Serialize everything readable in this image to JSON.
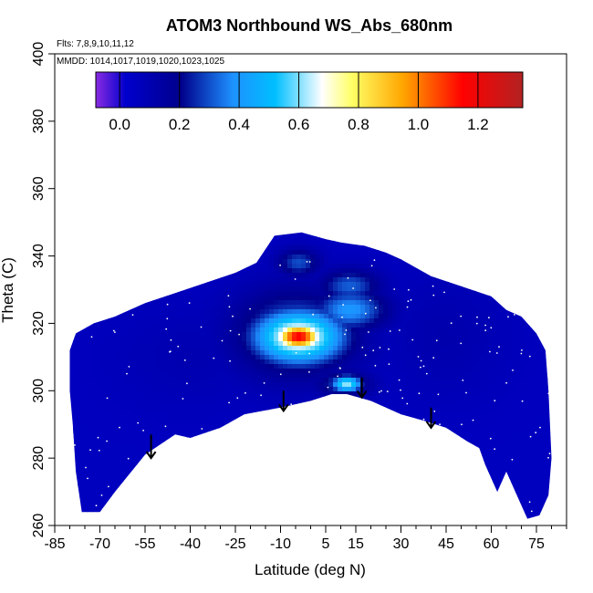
{
  "chart_data": {
    "type": "heatmap",
    "title": "ATOM3 Northbound WS_Abs_680nm",
    "xlabel": "Latitude (deg N)",
    "ylabel": "Theta (C)",
    "flights_label": "Flts: 7,8,9,10,11,12",
    "mmdd_label": "MMDD: 1014,1017,1019,1020,1023,1025",
    "xlim": [
      -85,
      85
    ],
    "ylim": [
      260,
      400
    ],
    "x_ticks": [
      -85,
      -70,
      -55,
      -40,
      -25,
      -10,
      5,
      15,
      30,
      45,
      60,
      75
    ],
    "x_tick_labels": [
      "-85",
      "-70",
      "-55",
      "-40",
      "-25",
      "-10",
      "5",
      "15",
      "30",
      "45",
      "60",
      "75"
    ],
    "y_ticks": [
      260,
      280,
      300,
      320,
      340,
      360,
      380,
      400
    ],
    "y_tick_labels": [
      "260",
      "280",
      "300",
      "320",
      "340",
      "360",
      "380",
      "400"
    ],
    "colorbar": {
      "range": [
        -0.08,
        1.35
      ],
      "ticks": [
        0.0,
        0.2,
        0.4,
        0.6,
        0.8,
        1.0,
        1.2
      ],
      "tick_labels": [
        "0.0",
        "0.2",
        "0.4",
        "0.6",
        "0.8",
        "1.0",
        "1.2"
      ],
      "colors": [
        "#8a2be2",
        "#0000cd",
        "#00008b",
        "#1e90ff",
        "#00bfff",
        "#ffffff",
        "#ffff66",
        "#ffa500",
        "#ff0000",
        "#b22222"
      ],
      "stops": [
        0.0,
        0.07,
        0.2,
        0.32,
        0.42,
        0.53,
        0.6,
        0.72,
        0.86,
        1.0
      ]
    },
    "coverage_upper": [
      [
        -80,
        312
      ],
      [
        -78,
        317
      ],
      [
        -72,
        320
      ],
      [
        -65,
        322
      ],
      [
        -55,
        326
      ],
      [
        -45,
        329
      ],
      [
        -35,
        332
      ],
      [
        -25,
        335
      ],
      [
        -18,
        338
      ],
      [
        -12,
        346
      ],
      [
        -3,
        347
      ],
      [
        5,
        345
      ],
      [
        10,
        344
      ],
      [
        18,
        343
      ],
      [
        25,
        341
      ],
      [
        30,
        339
      ],
      [
        40,
        334
      ],
      [
        50,
        331
      ],
      [
        60,
        328
      ],
      [
        65,
        324
      ],
      [
        70,
        322
      ],
      [
        75,
        317
      ],
      [
        78,
        312
      ],
      [
        79,
        300
      ],
      [
        80,
        280
      ],
      [
        79,
        269
      ]
    ],
    "coverage_lower": [
      [
        -80,
        312
      ],
      [
        -80,
        300
      ],
      [
        -79,
        290
      ],
      [
        -78,
        276
      ],
      [
        -76,
        264
      ],
      [
        -70,
        264
      ],
      [
        -65,
        270
      ],
      [
        -55,
        281
      ],
      [
        -45,
        287
      ],
      [
        -40,
        286
      ],
      [
        -30,
        289
      ],
      [
        -22,
        293
      ],
      [
        -10,
        295
      ],
      [
        0,
        297
      ],
      [
        7,
        299
      ],
      [
        12,
        299
      ],
      [
        20,
        297
      ],
      [
        30,
        293
      ],
      [
        38,
        291
      ],
      [
        45,
        289
      ],
      [
        52,
        285
      ],
      [
        56,
        283
      ],
      [
        58,
        278
      ],
      [
        62,
        270
      ],
      [
        65,
        276
      ],
      [
        68,
        270
      ],
      [
        72,
        262
      ],
      [
        76,
        263
      ],
      [
        79,
        269
      ]
    ],
    "background_value": 0.06,
    "features": [
      {
        "lat": -4,
        "theta": 316,
        "value": 1.18,
        "rx": 8,
        "ry": 4
      },
      {
        "lat": -4,
        "theta": 316,
        "value": 0.75,
        "rx": 15,
        "ry": 8
      },
      {
        "lat": -5,
        "theta": 317,
        "value": 0.35,
        "rx": 20,
        "ry": 13
      },
      {
        "lat": 13,
        "theta": 324,
        "value": 0.4,
        "rx": 12,
        "ry": 6
      },
      {
        "lat": 13,
        "theta": 331,
        "value": 0.32,
        "rx": 10,
        "ry": 5
      },
      {
        "lat": 12,
        "theta": 302,
        "value": 0.62,
        "rx": 5,
        "ry": 2.5
      },
      {
        "lat": 11,
        "theta": 302,
        "value": 0.3,
        "rx": 9,
        "ry": 4
      },
      {
        "lat": -4,
        "theta": 338,
        "value": 0.3,
        "rx": 7,
        "ry": 4
      },
      {
        "lat": 45,
        "theta": 316,
        "value": 0.11,
        "rx": 20,
        "ry": 18
      },
      {
        "lat": -40,
        "theta": 310,
        "value": 0.1,
        "rx": 25,
        "ry": 15
      }
    ],
    "arrows": [
      {
        "lat": -53,
        "theta_top": 287,
        "theta_tip": 280
      },
      {
        "lat": -9,
        "theta_top": 300,
        "theta_tip": 294
      },
      {
        "lat": 17,
        "theta_top": 304,
        "theta_tip": 298
      },
      {
        "lat": 40,
        "theta_top": 295,
        "theta_tip": 289
      }
    ]
  }
}
